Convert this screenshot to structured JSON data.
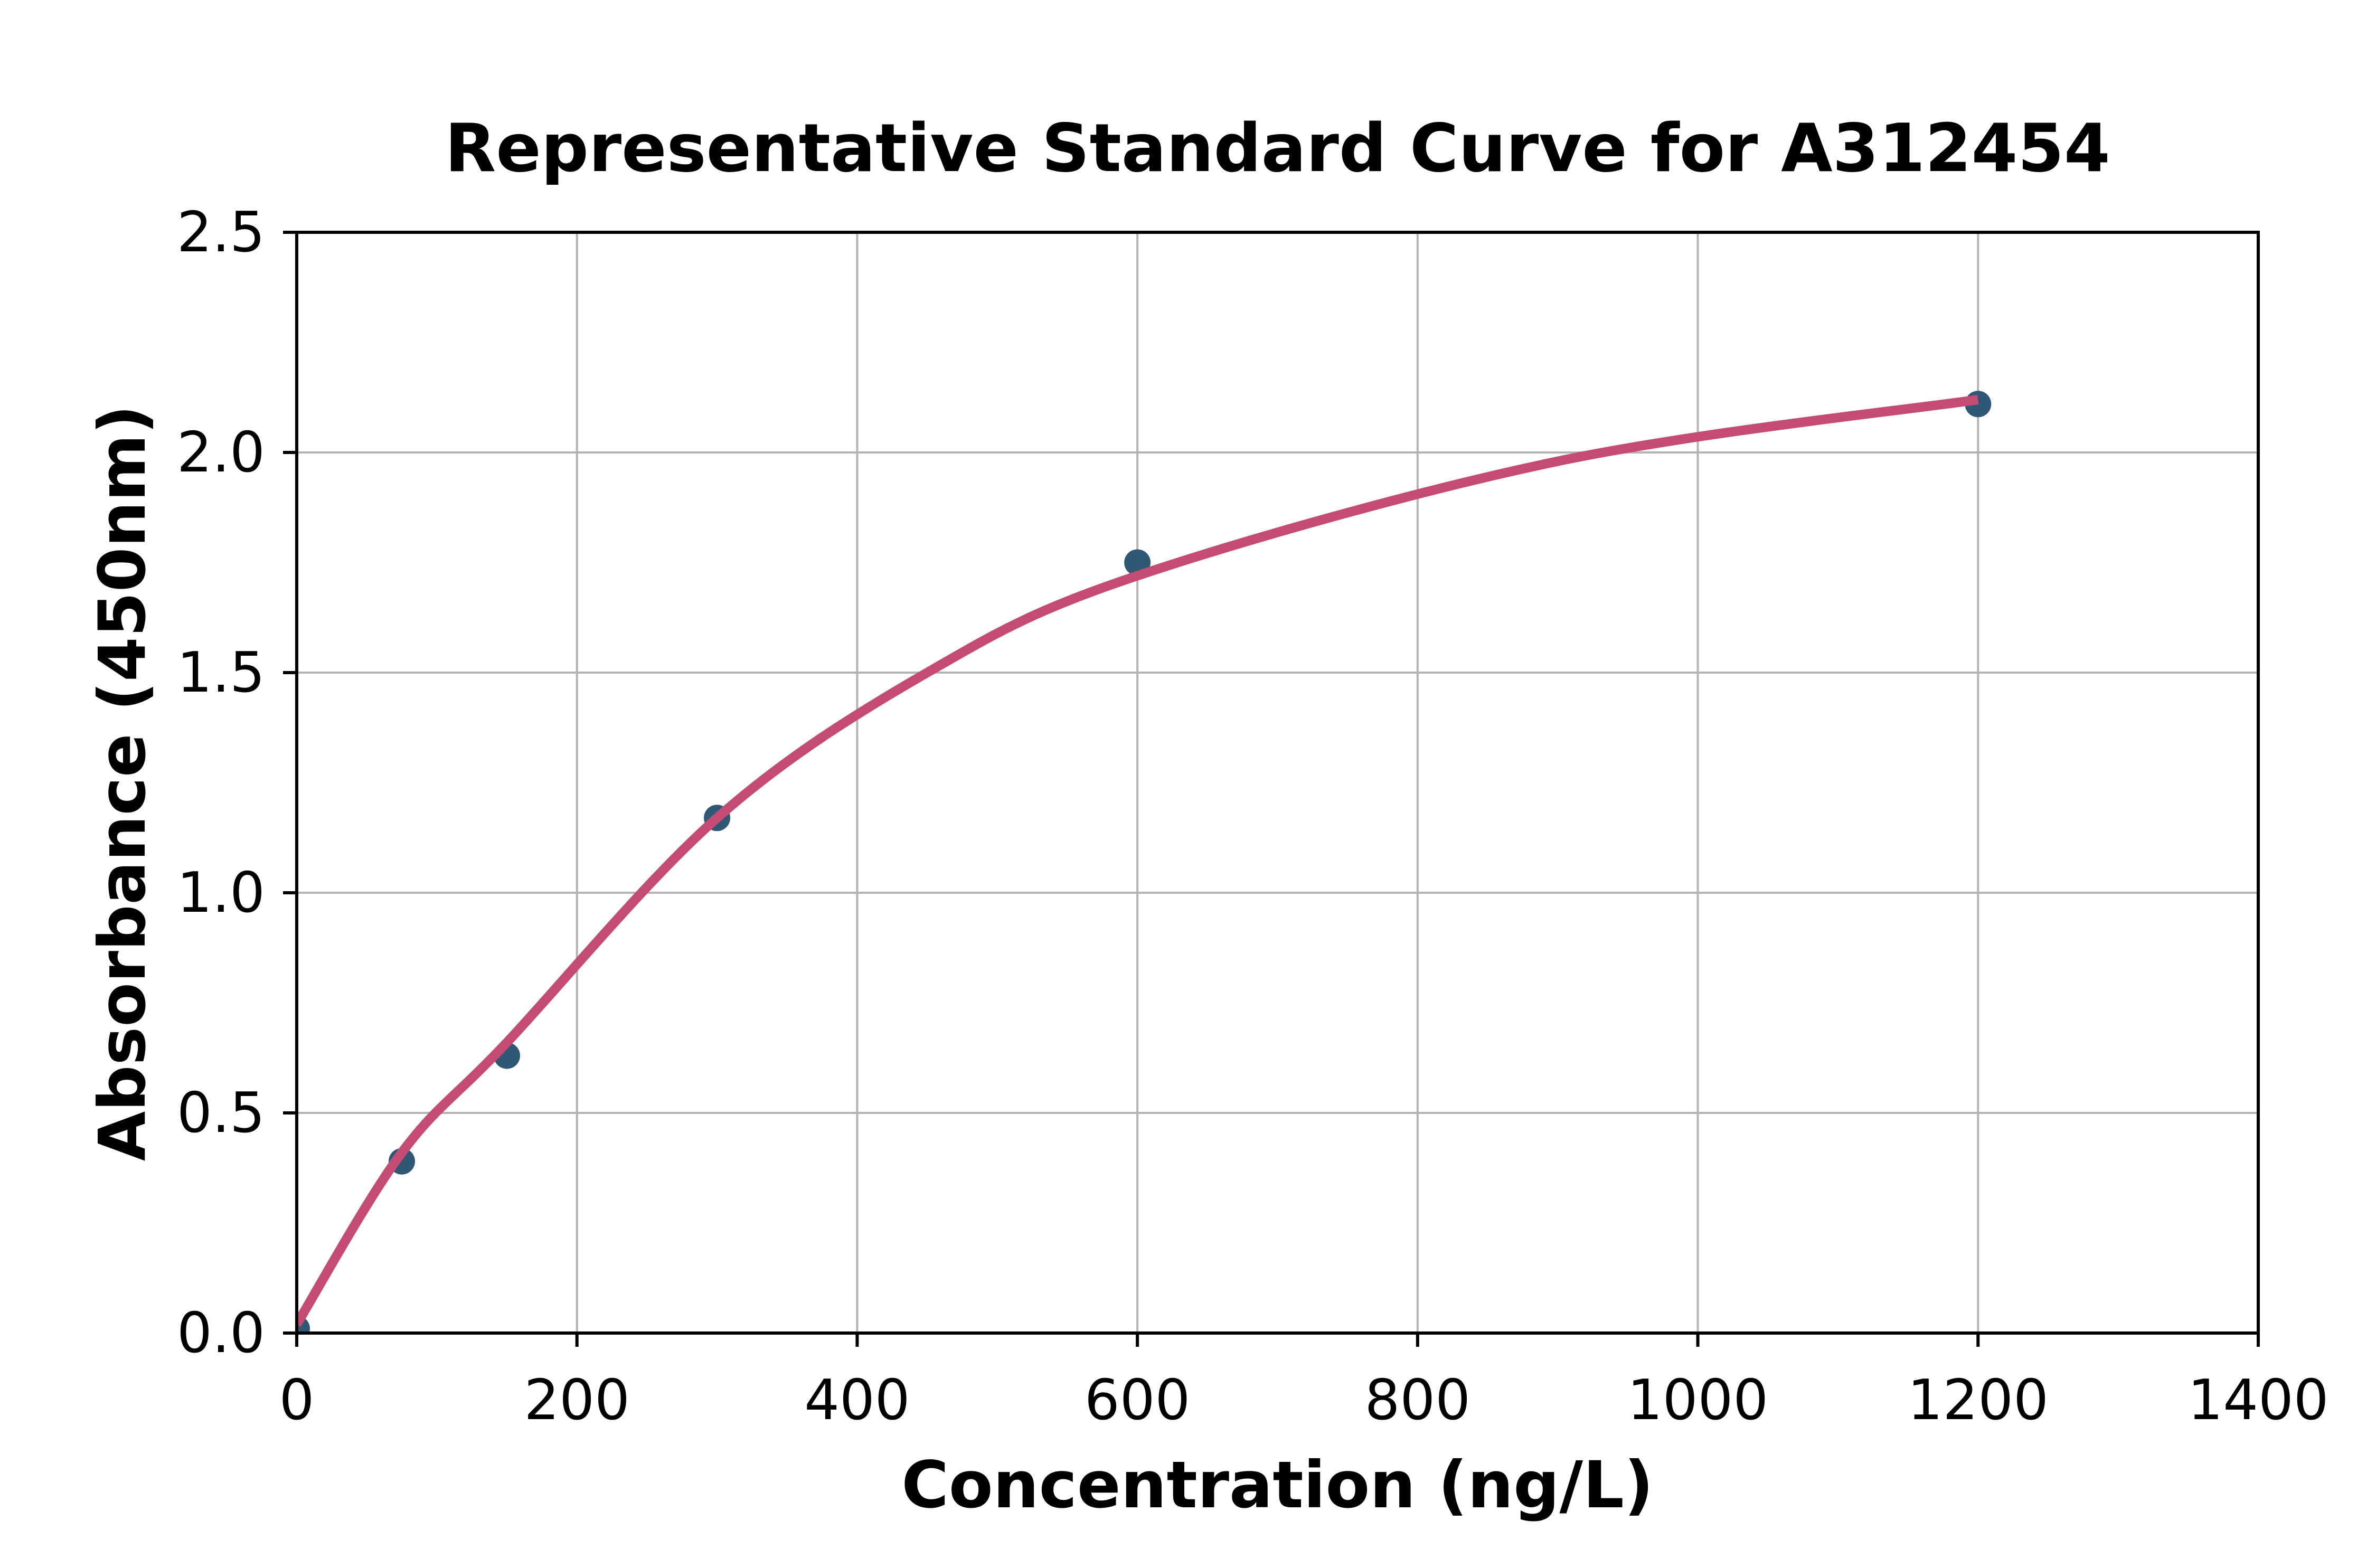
{
  "title": "Representative Standard Curve for A312454",
  "chart_data": {
    "type": "scatter",
    "title": "Representative Standard Curve for A312454",
    "xlabel": "Concentration (ng/L)",
    "ylabel": "Absorbance (450nm)",
    "xlim": [
      0,
      1400
    ],
    "ylim": [
      0.0,
      2.5
    ],
    "x_tick_values": [
      0,
      200,
      400,
      600,
      800,
      1000,
      1200,
      1400
    ],
    "x_tick_labels": [
      "0",
      "200",
      "400",
      "600",
      "800",
      "1000",
      "1200",
      "1400"
    ],
    "y_tick_values": [
      0.0,
      0.5,
      1.0,
      1.5,
      2.0,
      2.5
    ],
    "y_tick_labels": [
      "0.0",
      "0.5",
      "1.0",
      "1.5",
      "2.0",
      "2.5"
    ],
    "grid": true,
    "legend": "none",
    "series": [
      {
        "name": "standards",
        "points": [
          {
            "x": 0,
            "y": 0.01
          },
          {
            "x": 75,
            "y": 0.39
          },
          {
            "x": 150,
            "y": 0.63
          },
          {
            "x": 300,
            "y": 1.17
          },
          {
            "x": 600,
            "y": 1.75
          },
          {
            "x": 1200,
            "y": 2.11
          }
        ]
      }
    ],
    "fit_curve_samples": [
      {
        "x": 0,
        "y": 0.02
      },
      {
        "x": 75,
        "y": 0.41
      },
      {
        "x": 150,
        "y": 0.66
      },
      {
        "x": 300,
        "y": 1.17
      },
      {
        "x": 450,
        "y": 1.5
      },
      {
        "x": 600,
        "y": 1.72
      },
      {
        "x": 900,
        "y": 1.98
      },
      {
        "x": 1200,
        "y": 2.12
      }
    ],
    "colors": {
      "marker": "#2F5876",
      "curve": "#C44B73",
      "grid": "#B3B3B3",
      "axis": "#000000",
      "background": "#FFFFFF"
    }
  }
}
